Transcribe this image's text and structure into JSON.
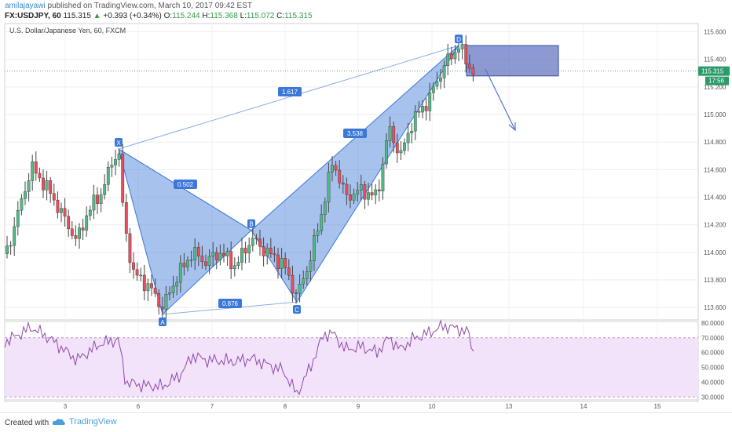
{
  "header": {
    "author": "amilajayawi",
    "published": "published on TradingView.com, March 10, 2017 09:42 EST",
    "symbol": "FX:USDJPY, 60",
    "last": "115.315",
    "change": "+0.393 (+0.34%)",
    "open_label": "O:",
    "open": "115.244",
    "high_label": "H:",
    "high": "115.368",
    "low_label": "L:",
    "low": "115.072",
    "close_label": "C:",
    "close": "115.315"
  },
  "chart_data": {
    "type": "candlestick",
    "title": "U.S. Dollar/Japanese Yen, 60, FXCM",
    "price_axis": {
      "ylim": [
        113.51,
        115.66
      ],
      "ticks": [
        "115.600",
        "115.400",
        "115.200",
        "115.000",
        "114.800",
        "114.600",
        "114.400",
        "114.200",
        "114.000",
        "113.800",
        "113.600"
      ]
    },
    "current_price": {
      "value": 115.315,
      "label": "115.315",
      "countdown": "17:56"
    },
    "x_axis": {
      "ticks": [
        "3",
        "6",
        "7",
        "8",
        "9",
        "10",
        "13",
        "14",
        "15"
      ]
    },
    "pattern": {
      "points": [
        {
          "label": "X",
          "price": 114.75
        },
        {
          "label": "A",
          "price": 113.55
        },
        {
          "label": "B",
          "price": 114.16
        },
        {
          "label": "C",
          "price": 113.64
        },
        {
          "label": "D",
          "price": 115.5
        }
      ],
      "ratios": {
        "XB": "1.617",
        "XA_B": "0.502",
        "AC": "0.876",
        "BD": "3.538"
      }
    },
    "target_zone": {
      "price_top": 115.5,
      "price_bottom": 115.28
    },
    "rsi": {
      "ylim": [
        27,
        81
      ],
      "ticks": [
        "80.0000",
        "70.0000",
        "60.0000",
        "50.0000",
        "40.0000",
        "30.0000"
      ],
      "band": [
        30,
        70
      ]
    },
    "colors": {
      "up": "#53b987",
      "down": "#eb4d5c",
      "pattern": "#3c78d8",
      "rsi": "#8e4aa8"
    }
  },
  "footer": {
    "created": "Created with",
    "brand": "TradingView"
  }
}
